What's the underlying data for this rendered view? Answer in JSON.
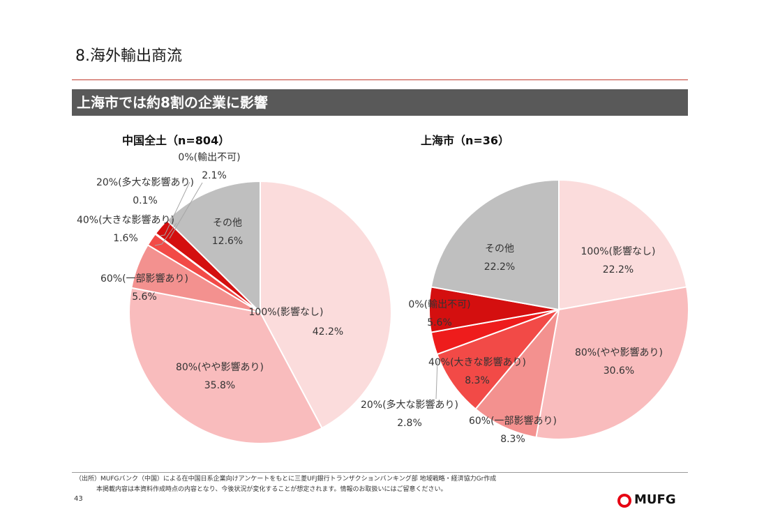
{
  "header": {
    "title": "8.海外輸出商流",
    "banner": "上海市では約8割の企業に影響"
  },
  "chart_data": [
    {
      "type": "pie",
      "title": "中国全土（n=804）",
      "slices": [
        {
          "category": "100%(影響なし)",
          "value": 42.2,
          "label": "42.2%",
          "color": "#fbdcdc"
        },
        {
          "category": "80%(やや影響あり)",
          "value": 35.8,
          "label": "35.8%",
          "color": "#f9bcbd"
        },
        {
          "category": "60%(一部影響あり)",
          "value": 5.6,
          "label": "5.6%",
          "color": "#f3918f"
        },
        {
          "category": "40%(大きな影響あり)",
          "value": 1.6,
          "label": "1.6%",
          "color": "#f24a47"
        },
        {
          "category": "20%(多大な影響あり)",
          "value": 0.1,
          "label": "0.1%",
          "color": "#ee1c1c"
        },
        {
          "category": "0%(輸出不可)",
          "value": 2.1,
          "label": "2.1%",
          "color": "#d40f0f"
        },
        {
          "category": "その他",
          "value": 12.6,
          "label": "12.6%",
          "color": "#bfbfbf"
        }
      ]
    },
    {
      "type": "pie",
      "title": "上海市（n=36）",
      "slices": [
        {
          "category": "100%(影響なし)",
          "value": 22.2,
          "label": "22.2%",
          "color": "#fbdcdc"
        },
        {
          "category": "80%(やや影響あり)",
          "value": 30.6,
          "label": "30.6%",
          "color": "#f9bcbd"
        },
        {
          "category": "60%(一部影響あり)",
          "value": 8.3,
          "label": "8.3%",
          "color": "#f3918f"
        },
        {
          "category": "40%(大きな影響あり)",
          "value": 8.3,
          "label": "8.3%",
          "color": "#f24a47"
        },
        {
          "category": "20%(多大な影響あり)",
          "value": 2.8,
          "label": "2.8%",
          "color": "#ee1c1c"
        },
        {
          "category": "0%(輸出不可)",
          "value": 5.6,
          "label": "5.6%",
          "color": "#d40f0f"
        },
        {
          "category": "その他",
          "value": 22.2,
          "label": "22.2%",
          "color": "#bfbfbf"
        }
      ]
    }
  ],
  "footer": {
    "source": "（出所）MUFGバンク（中国）による在中国日系企業向けアンケートをもとに三菱UFJ銀行トランザクションバンキング部 地域戦略・経済協力Gr作成",
    "disclaimer": "本掲載内容は本資料作成時点の内容となり、今後状況が変化することが想定されます。情報のお取扱いにはご留意ください。",
    "page_number": "43",
    "logo_text": "MUFG"
  }
}
